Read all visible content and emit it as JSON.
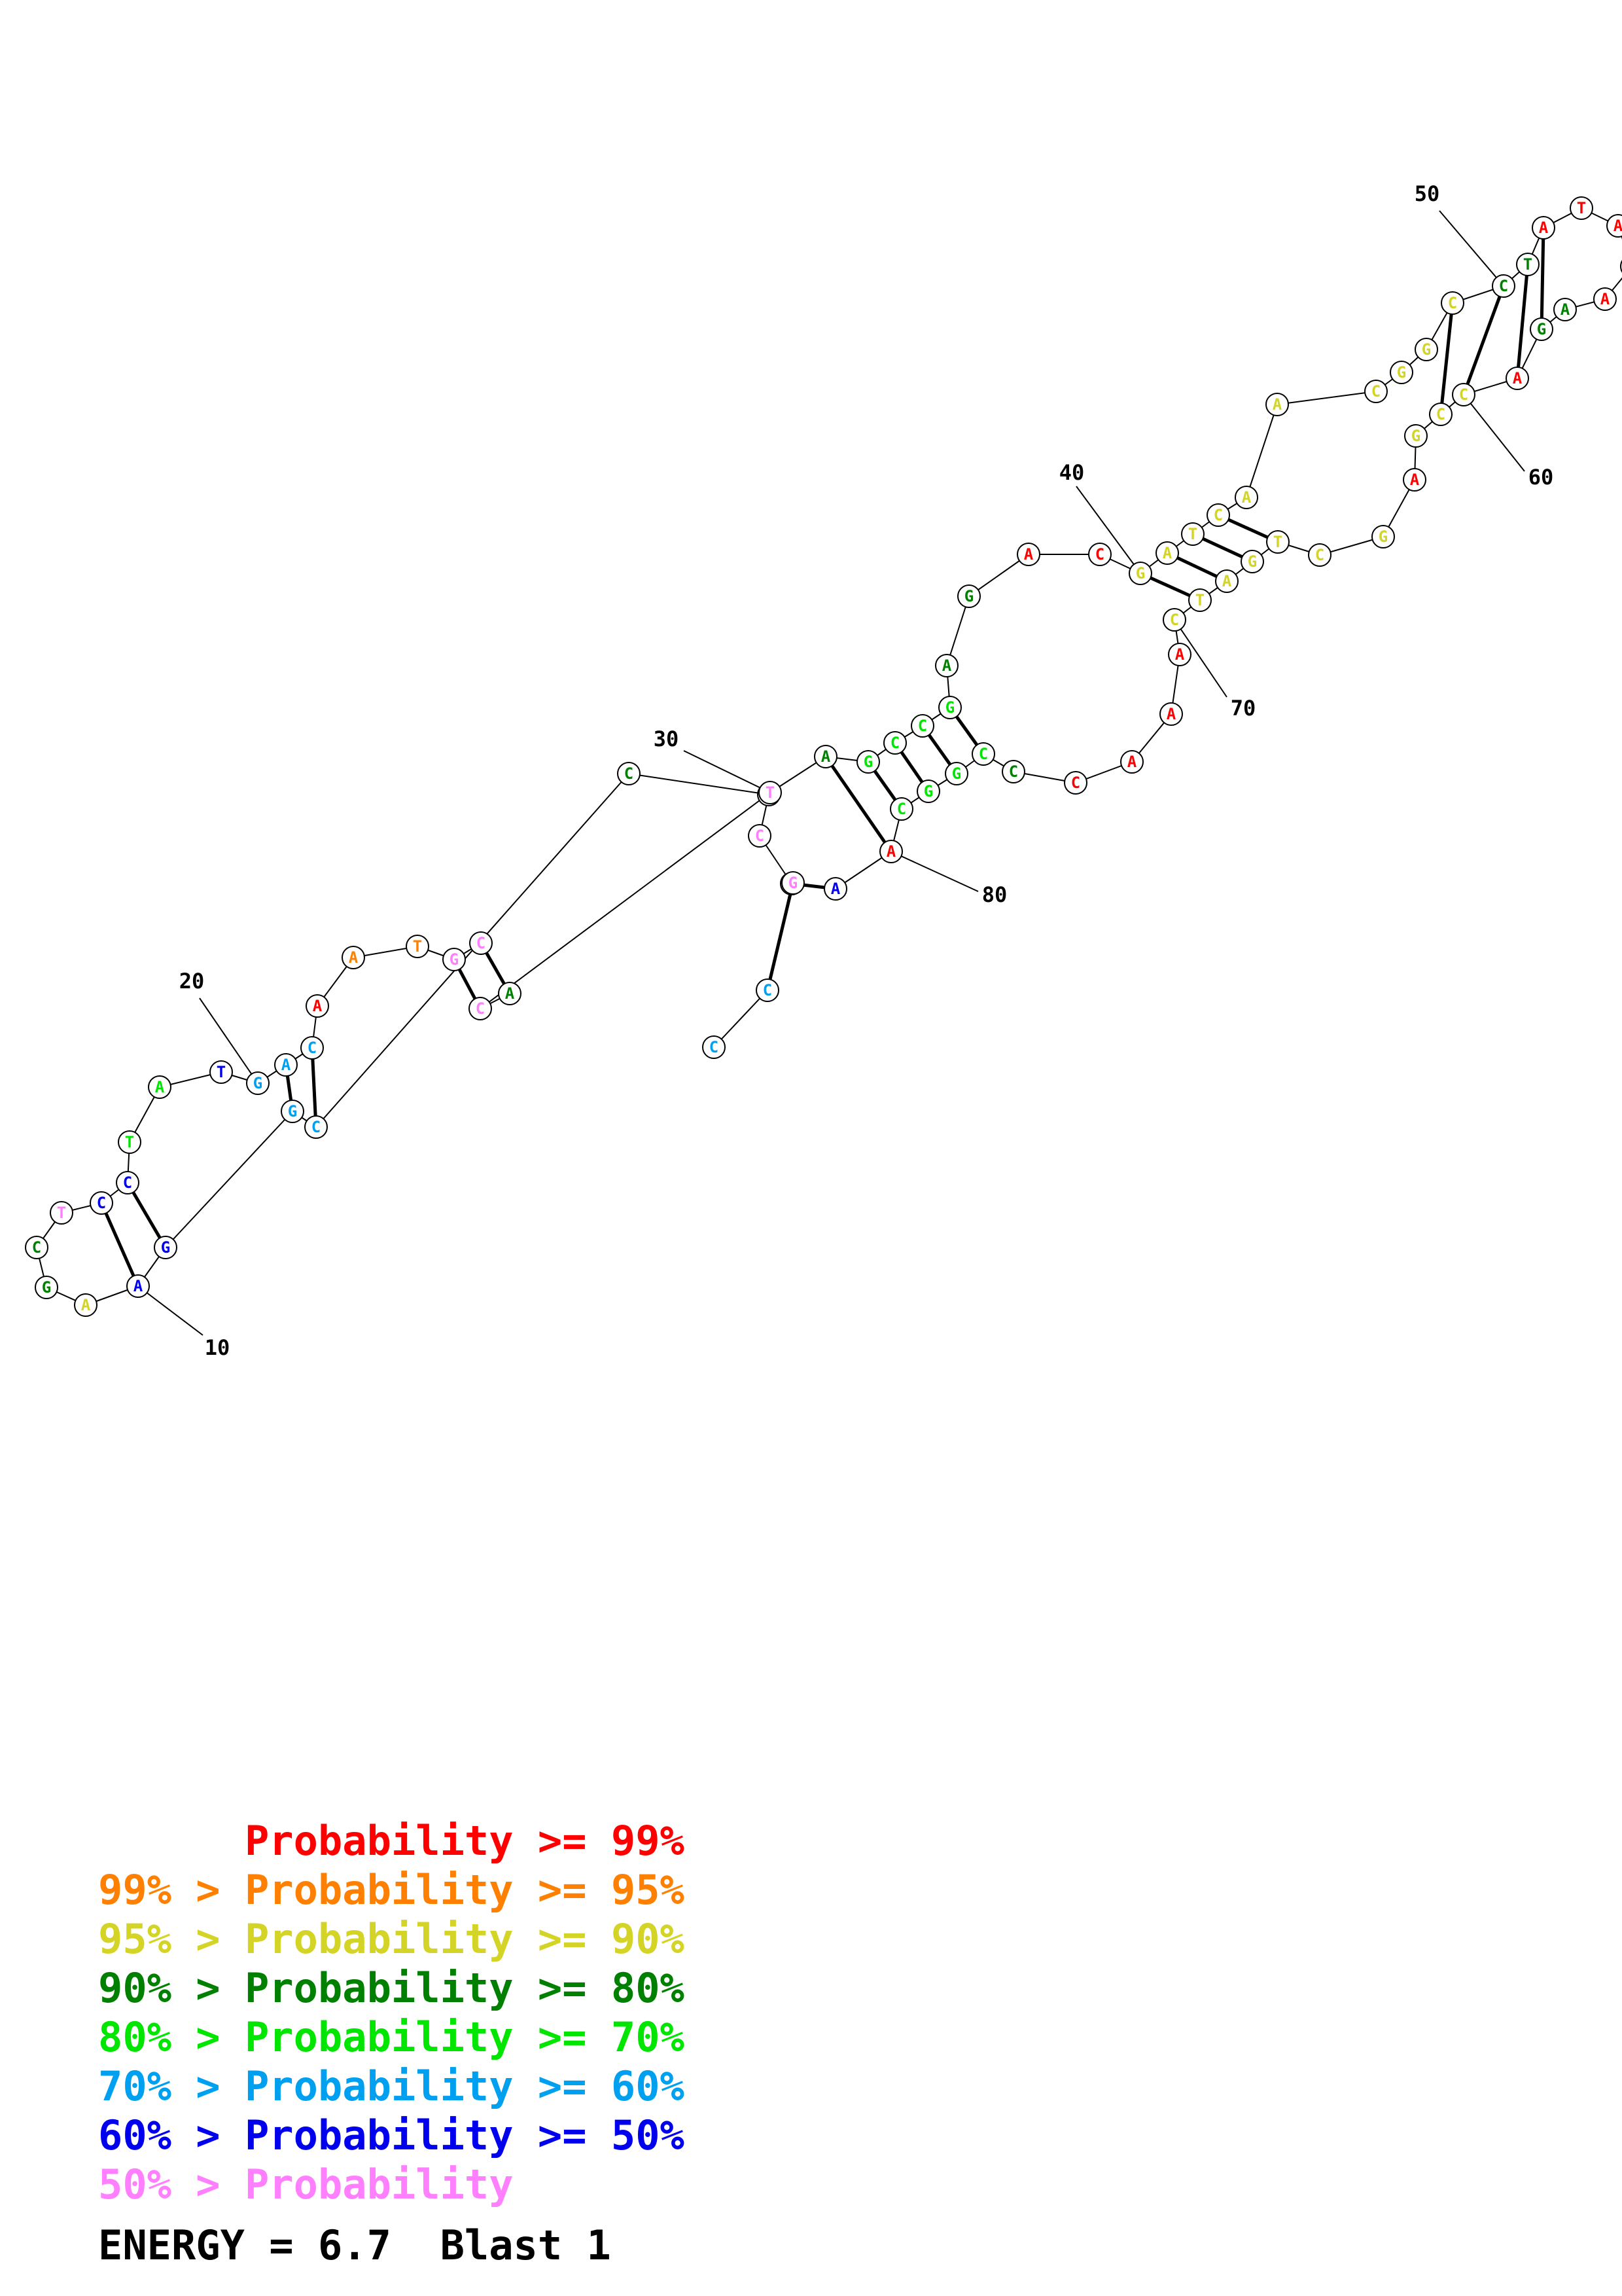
{
  "colors": {
    "p99": "#ff0000",
    "p95": "#ff8000",
    "p90": "#d4d426",
    "p80": "#008000",
    "p70": "#00e600",
    "p60": "#00a0f0",
    "p50": "#0000ee",
    "plow": "#ff80ff"
  },
  "structure": {
    "nucleotides": [
      {
        "n": 1,
        "base": "C",
        "c": "p60"
      },
      {
        "n": 2,
        "base": "C",
        "c": "p60"
      },
      {
        "n": 3,
        "base": "G",
        "c": "p60"
      },
      {
        "n": 4,
        "base": "C",
        "c": "plow"
      },
      {
        "n": 5,
        "base": "G",
        "c": "plow"
      },
      {
        "n": 6,
        "base": "C",
        "c": "p80"
      },
      {
        "n": 7,
        "base": "C",
        "c": "p60"
      },
      {
        "n": 8,
        "base": "G",
        "c": "p60"
      },
      {
        "n": 9,
        "base": "G",
        "c": "p50"
      },
      {
        "n": 10,
        "base": "A",
        "c": "p50"
      },
      {
        "n": 11,
        "base": "A",
        "c": "p90"
      },
      {
        "n": 12,
        "base": "G",
        "c": "p80"
      },
      {
        "n": 13,
        "base": "C",
        "c": "p80"
      },
      {
        "n": 14,
        "base": "T",
        "c": "plow"
      },
      {
        "n": 15,
        "base": "C",
        "c": "p50"
      },
      {
        "n": 16,
        "base": "C",
        "c": "p50"
      },
      {
        "n": 17,
        "base": "T",
        "c": "p70"
      },
      {
        "n": 18,
        "base": "A",
        "c": "p70"
      },
      {
        "n": 19,
        "base": "T",
        "c": "p50"
      },
      {
        "n": 20,
        "base": "G",
        "c": "p60"
      },
      {
        "n": 21,
        "base": "A",
        "c": "p60"
      },
      {
        "n": 22,
        "base": "C",
        "c": "p60"
      },
      {
        "n": 23,
        "base": "A",
        "c": "p99"
      },
      {
        "n": 24,
        "base": "A",
        "c": "p95"
      },
      {
        "n": 25,
        "base": "T",
        "c": "p95"
      },
      {
        "n": 26,
        "base": "G",
        "c": "plow"
      },
      {
        "n": 27,
        "base": "C",
        "c": "plow"
      },
      {
        "n": 28,
        "base": "A",
        "c": "p80"
      },
      {
        "n": 29,
        "base": "C",
        "c": "plow"
      },
      {
        "n": 30,
        "base": "T",
        "c": "plow"
      },
      {
        "n": 31,
        "base": "A",
        "c": "p80"
      },
      {
        "n": 32,
        "base": "G",
        "c": "p70"
      },
      {
        "n": 33,
        "base": "C",
        "c": "p70"
      },
      {
        "n": 34,
        "base": "C",
        "c": "p70"
      },
      {
        "n": 35,
        "base": "G",
        "c": "p70"
      },
      {
        "n": 36,
        "base": "A",
        "c": "p80"
      },
      {
        "n": 37,
        "base": "G",
        "c": "p80"
      },
      {
        "n": 38,
        "base": "A",
        "c": "p99"
      },
      {
        "n": 39,
        "base": "C",
        "c": "p99"
      },
      {
        "n": 40,
        "base": "G",
        "c": "p90"
      },
      {
        "n": 41,
        "base": "A",
        "c": "p90"
      },
      {
        "n": 42,
        "base": "T",
        "c": "p90"
      },
      {
        "n": 43,
        "base": "C",
        "c": "p90"
      },
      {
        "n": 44,
        "base": "A",
        "c": "p90"
      },
      {
        "n": 45,
        "base": "A",
        "c": "p90"
      },
      {
        "n": 46,
        "base": "C",
        "c": "p90"
      },
      {
        "n": 47,
        "base": "G",
        "c": "p90"
      },
      {
        "n": 48,
        "base": "G",
        "c": "p90"
      },
      {
        "n": 49,
        "base": "C",
        "c": "p90"
      },
      {
        "n": 50,
        "base": "C",
        "c": "p80"
      },
      {
        "n": 51,
        "base": "T",
        "c": "p80"
      },
      {
        "n": 52,
        "base": "A",
        "c": "p99"
      },
      {
        "n": 53,
        "base": "T",
        "c": "p99"
      },
      {
        "n": 54,
        "base": "A",
        "c": "p99"
      },
      {
        "n": 55,
        "base": "C",
        "c": "p90"
      },
      {
        "n": 56,
        "base": "A",
        "c": "p99"
      },
      {
        "n": 57,
        "base": "A",
        "c": "p80"
      },
      {
        "n": 58,
        "base": "G",
        "c": "p80"
      },
      {
        "n": 59,
        "base": "A",
        "c": "p99"
      },
      {
        "n": 60,
        "base": "C",
        "c": "p90"
      },
      {
        "n": 61,
        "base": "C",
        "c": "p90"
      },
      {
        "n": 62,
        "base": "G",
        "c": "p90"
      },
      {
        "n": 63,
        "base": "A",
        "c": "p99"
      },
      {
        "n": 64,
        "base": "G",
        "c": "p90"
      },
      {
        "n": 65,
        "base": "C",
        "c": "p90"
      },
      {
        "n": 66,
        "base": "T",
        "c": "p90"
      },
      {
        "n": 67,
        "base": "G",
        "c": "p90"
      },
      {
        "n": 68,
        "base": "A",
        "c": "p90"
      },
      {
        "n": 69,
        "base": "T",
        "c": "p90"
      },
      {
        "n": 70,
        "base": "C",
        "c": "p90"
      },
      {
        "n": 71,
        "base": "A",
        "c": "p99"
      },
      {
        "n": 72,
        "base": "A",
        "c": "p99"
      },
      {
        "n": 73,
        "base": "A",
        "c": "p99"
      },
      {
        "n": 74,
        "base": "C",
        "c": "p99"
      },
      {
        "n": 75,
        "base": "C",
        "c": "p80"
      },
      {
        "n": 76,
        "base": "C",
        "c": "p70"
      },
      {
        "n": 77,
        "base": "G",
        "c": "p70"
      },
      {
        "n": 78,
        "base": "G",
        "c": "p70"
      },
      {
        "n": 79,
        "base": "C",
        "c": "p70"
      },
      {
        "n": 80,
        "base": "A",
        "c": "p99"
      },
      {
        "n": 81,
        "base": "A",
        "c": "p50"
      },
      {
        "n": 82,
        "base": "G",
        "c": "plow"
      }
    ],
    "pairs": [
      [
        2,
        82
      ],
      [
        3,
        81
      ],
      [
        7,
        22
      ],
      [
        8,
        21
      ],
      [
        9,
        16
      ],
      [
        10,
        15
      ],
      [
        26,
        29
      ],
      [
        27,
        28
      ],
      [
        31,
        80
      ],
      [
        32,
        79
      ],
      [
        33,
        78
      ],
      [
        34,
        77
      ],
      [
        35,
        76
      ],
      [
        40,
        69
      ],
      [
        41,
        68
      ],
      [
        42,
        67
      ],
      [
        43,
        66
      ],
      [
        49,
        61
      ],
      [
        50,
        60
      ],
      [
        51,
        59
      ],
      [
        52,
        58
      ]
    ],
    "position_labels": [
      "10",
      "20",
      "30",
      "40",
      "50",
      "60",
      "70",
      "80"
    ]
  },
  "legend": [
    {
      "text": "      Probability >= 99%",
      "c": "p99"
    },
    {
      "text": "99% > Probability >= 95%",
      "c": "p95"
    },
    {
      "text": "95% > Probability >= 90%",
      "c": "p90"
    },
    {
      "text": "90% > Probability >= 80%",
      "c": "p80"
    },
    {
      "text": "80% > Probability >= 70%",
      "c": "p70"
    },
    {
      "text": "70% > Probability >= 60%",
      "c": "p60"
    },
    {
      "text": "60% > Probability >= 50%",
      "c": "p50"
    },
    {
      "text": "50% > Probability",
      "c": "plow"
    }
  ],
  "energy": "ENERGY = 6.7  Blast 1"
}
